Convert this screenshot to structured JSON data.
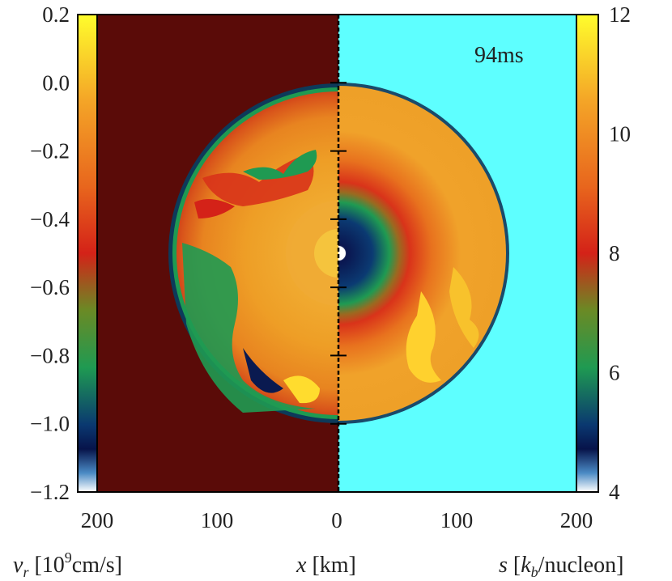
{
  "chart_data": {
    "type": "heatmap",
    "time_label": "94ms",
    "x_axis": {
      "title_var": "x",
      "title_unit": " [km]",
      "tick_labels": [
        "200",
        "100",
        "0",
        "100",
        "200"
      ],
      "range_km": [
        -200,
        200
      ]
    },
    "left_colorbar": {
      "quantity": "v_r",
      "title_var": "v",
      "title_sub": "r",
      "title_unit_prefix": " [10",
      "title_unit_exp": "9",
      "title_unit_suffix": "cm/s]",
      "range": [
        -1.2,
        0.2
      ],
      "ticks": [
        0.2,
        0.0,
        -0.2,
        -0.4,
        -0.6,
        -0.8,
        -1.0,
        -1.2
      ],
      "tick_labels": [
        "0.2",
        "0.0",
        "−0.2",
        "−0.4",
        "−0.6",
        "−0.8",
        "−1.0",
        "−1.2"
      ]
    },
    "right_colorbar": {
      "quantity": "s",
      "title_var": "s",
      "title_mid": " [",
      "title_k": "k",
      "title_sub": "b",
      "title_unit": "/nucleon]",
      "range": [
        4,
        12
      ],
      "ticks": [
        12,
        10,
        8,
        6,
        4
      ],
      "tick_labels": [
        "12",
        "10",
        "8",
        "6",
        "4"
      ]
    },
    "colors": {
      "left_background": "#5a0b08",
      "right_background": "#5effff",
      "shock_core": "#ec9c1f",
      "velocity_inner": "#f2b02a",
      "entropy_ring_green": "#1f9a52",
      "entropy_core_dark": "#071552",
      "plume_yellow": "#ffdc2e"
    },
    "shock_radius_km": 150,
    "shell_radius_km": 57
  }
}
